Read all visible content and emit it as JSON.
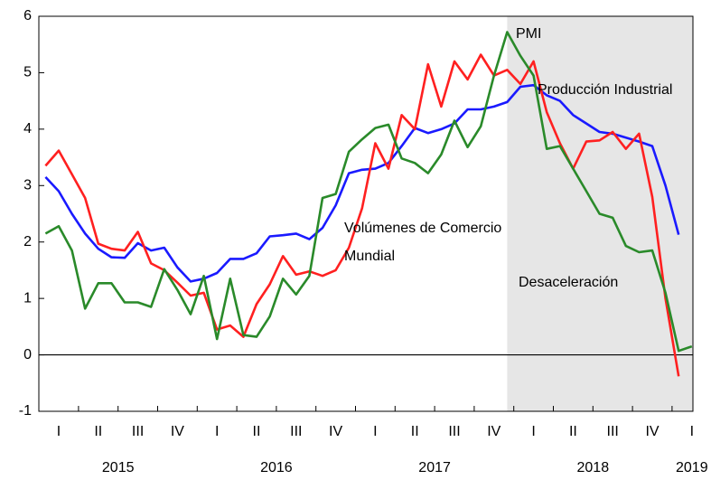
{
  "chart_data": {
    "type": "line",
    "categories": [
      null,
      "I",
      null,
      null,
      "II",
      null,
      null,
      "III",
      null,
      null,
      "IV",
      null,
      null,
      "I",
      null,
      null,
      "II",
      null,
      null,
      "III",
      null,
      null,
      "IV",
      null,
      null,
      "I",
      null,
      null,
      "II",
      null,
      null,
      "III",
      null,
      null,
      "IV",
      null,
      null,
      "I",
      null,
      null,
      "II",
      null,
      null,
      "III",
      null,
      null,
      "IV",
      null,
      null,
      "I"
    ],
    "years": [
      "2015",
      "2016",
      "2017",
      "2018",
      "2019"
    ],
    "ylim": [
      -1,
      6
    ],
    "yticks": [
      -1,
      0,
      1,
      2,
      3,
      4,
      5,
      6
    ],
    "shaded_region": {
      "label": "Desaceleración",
      "start": 35
    },
    "series": [
      {
        "name": "Producción Industrial",
        "color": "#1a1aff",
        "values": [
          3.15,
          2.9,
          2.5,
          2.15,
          1.88,
          1.73,
          1.72,
          1.98,
          1.85,
          1.9,
          1.55,
          1.3,
          1.35,
          1.45,
          1.7,
          1.7,
          1.8,
          2.1,
          2.12,
          2.15,
          2.05,
          2.25,
          2.65,
          3.22,
          3.28,
          3.3,
          3.4,
          3.7,
          4.02,
          3.93,
          4.0,
          4.1,
          4.35,
          4.35,
          4.4,
          4.48,
          4.75,
          4.78,
          4.6,
          4.5,
          4.25,
          4.1,
          3.95,
          3.92,
          3.85,
          3.78,
          3.7,
          3.0,
          2.13,
          null
        ]
      },
      {
        "name": "Volúmenes de Comercio Mundial",
        "color": "#ff2020",
        "values": [
          3.35,
          3.62,
          3.2,
          2.78,
          1.97,
          1.88,
          1.85,
          2.18,
          1.62,
          1.5,
          1.28,
          1.05,
          1.1,
          0.45,
          0.52,
          0.32,
          0.9,
          1.25,
          1.75,
          1.42,
          1.48,
          1.4,
          1.5,
          1.9,
          2.6,
          3.75,
          3.3,
          4.25,
          4.0,
          5.15,
          4.4,
          5.2,
          4.88,
          5.32,
          4.95,
          5.05,
          4.8,
          5.2,
          4.3,
          3.75,
          3.3,
          3.78,
          3.8,
          3.95,
          3.65,
          3.92,
          2.8,
          1.0,
          -0.38,
          null
        ]
      },
      {
        "name": "PMI",
        "color": "#2a8a2a",
        "values": [
          2.15,
          2.28,
          1.85,
          0.82,
          1.27,
          1.27,
          0.93,
          0.93,
          0.85,
          1.52,
          1.15,
          0.72,
          1.4,
          0.28,
          1.35,
          0.35,
          0.32,
          0.68,
          1.35,
          1.07,
          1.4,
          2.78,
          2.85,
          3.6,
          3.82,
          4.02,
          4.08,
          3.48,
          3.4,
          3.22,
          3.55,
          4.15,
          3.68,
          4.05,
          4.95,
          5.72,
          5.3,
          4.95,
          3.65,
          3.7,
          3.3,
          2.9,
          2.5,
          2.43,
          1.93,
          1.82,
          1.85,
          1.1,
          0.07,
          0.15
        ]
      }
    ],
    "annotations": [
      "PMI",
      "Producción Industrial",
      "Volúmenes de Comercio",
      "Mundial"
    ]
  }
}
